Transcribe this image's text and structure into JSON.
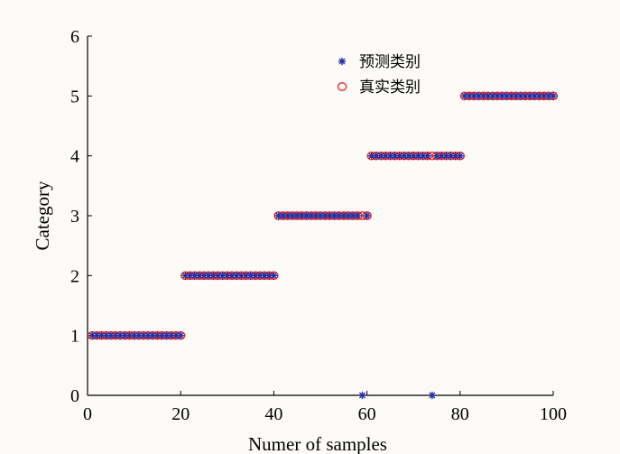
{
  "chart_data": {
    "type": "scatter",
    "title": "",
    "xlabel": "Numer of samples",
    "ylabel": "Category",
    "xlim": [
      0,
      100
    ],
    "ylim": [
      0,
      6
    ],
    "xticks": [
      0,
      20,
      40,
      60,
      80,
      100
    ],
    "yticks": [
      0,
      1,
      2,
      3,
      4,
      5,
      6
    ],
    "grid": false,
    "legend_position": "top-right",
    "series": [
      {
        "name": "预测类别",
        "marker": "asterisk",
        "color": "#2b2f9b",
        "x": [
          1,
          2,
          3,
          4,
          5,
          6,
          7,
          8,
          9,
          10,
          11,
          12,
          13,
          14,
          15,
          16,
          17,
          18,
          19,
          20,
          21,
          22,
          23,
          24,
          25,
          26,
          27,
          28,
          29,
          30,
          31,
          32,
          33,
          34,
          35,
          36,
          37,
          38,
          39,
          40,
          41,
          42,
          43,
          44,
          45,
          46,
          47,
          48,
          49,
          50,
          51,
          52,
          53,
          54,
          55,
          56,
          57,
          58,
          59,
          60,
          61,
          62,
          63,
          64,
          65,
          66,
          67,
          68,
          69,
          70,
          71,
          72,
          73,
          74,
          75,
          76,
          77,
          78,
          79,
          80,
          81,
          82,
          83,
          84,
          85,
          86,
          87,
          88,
          89,
          90,
          91,
          92,
          93,
          94,
          95,
          96,
          97,
          98,
          99,
          100
        ],
        "y": [
          1,
          1,
          1,
          1,
          1,
          1,
          1,
          1,
          1,
          1,
          1,
          1,
          1,
          1,
          1,
          1,
          1,
          1,
          1,
          1,
          2,
          2,
          2,
          2,
          2,
          2,
          2,
          2,
          2,
          2,
          2,
          2,
          2,
          2,
          2,
          2,
          2,
          2,
          2,
          2,
          3,
          3,
          3,
          3,
          3,
          3,
          3,
          3,
          3,
          3,
          3,
          3,
          3,
          3,
          3,
          3,
          3,
          3,
          0,
          3,
          4,
          4,
          4,
          4,
          4,
          4,
          4,
          4,
          4,
          4,
          4,
          4,
          4,
          0,
          4,
          4,
          4,
          4,
          4,
          4,
          5,
          5,
          5,
          5,
          5,
          5,
          5,
          5,
          5,
          5,
          5,
          5,
          5,
          5,
          5,
          5,
          5,
          5,
          5,
          5
        ]
      },
      {
        "name": "真实类别",
        "marker": "circle",
        "color": "#e8242b",
        "x": [
          1,
          2,
          3,
          4,
          5,
          6,
          7,
          8,
          9,
          10,
          11,
          12,
          13,
          14,
          15,
          16,
          17,
          18,
          19,
          20,
          21,
          22,
          23,
          24,
          25,
          26,
          27,
          28,
          29,
          30,
          31,
          32,
          33,
          34,
          35,
          36,
          37,
          38,
          39,
          40,
          41,
          42,
          43,
          44,
          45,
          46,
          47,
          48,
          49,
          50,
          51,
          52,
          53,
          54,
          55,
          56,
          57,
          58,
          59,
          60,
          61,
          62,
          63,
          64,
          65,
          66,
          67,
          68,
          69,
          70,
          71,
          72,
          73,
          74,
          75,
          76,
          77,
          78,
          79,
          80,
          81,
          82,
          83,
          84,
          85,
          86,
          87,
          88,
          89,
          90,
          91,
          92,
          93,
          94,
          95,
          96,
          97,
          98,
          99,
          100
        ],
        "y": [
          1,
          1,
          1,
          1,
          1,
          1,
          1,
          1,
          1,
          1,
          1,
          1,
          1,
          1,
          1,
          1,
          1,
          1,
          1,
          1,
          2,
          2,
          2,
          2,
          2,
          2,
          2,
          2,
          2,
          2,
          2,
          2,
          2,
          2,
          2,
          2,
          2,
          2,
          2,
          2,
          3,
          3,
          3,
          3,
          3,
          3,
          3,
          3,
          3,
          3,
          3,
          3,
          3,
          3,
          3,
          3,
          3,
          3,
          3,
          3,
          4,
          4,
          4,
          4,
          4,
          4,
          4,
          4,
          4,
          4,
          4,
          4,
          4,
          4,
          4,
          4,
          4,
          4,
          4,
          4,
          5,
          5,
          5,
          5,
          5,
          5,
          5,
          5,
          5,
          5,
          5,
          5,
          5,
          5,
          5,
          5,
          5,
          5,
          5,
          5
        ]
      }
    ]
  }
}
